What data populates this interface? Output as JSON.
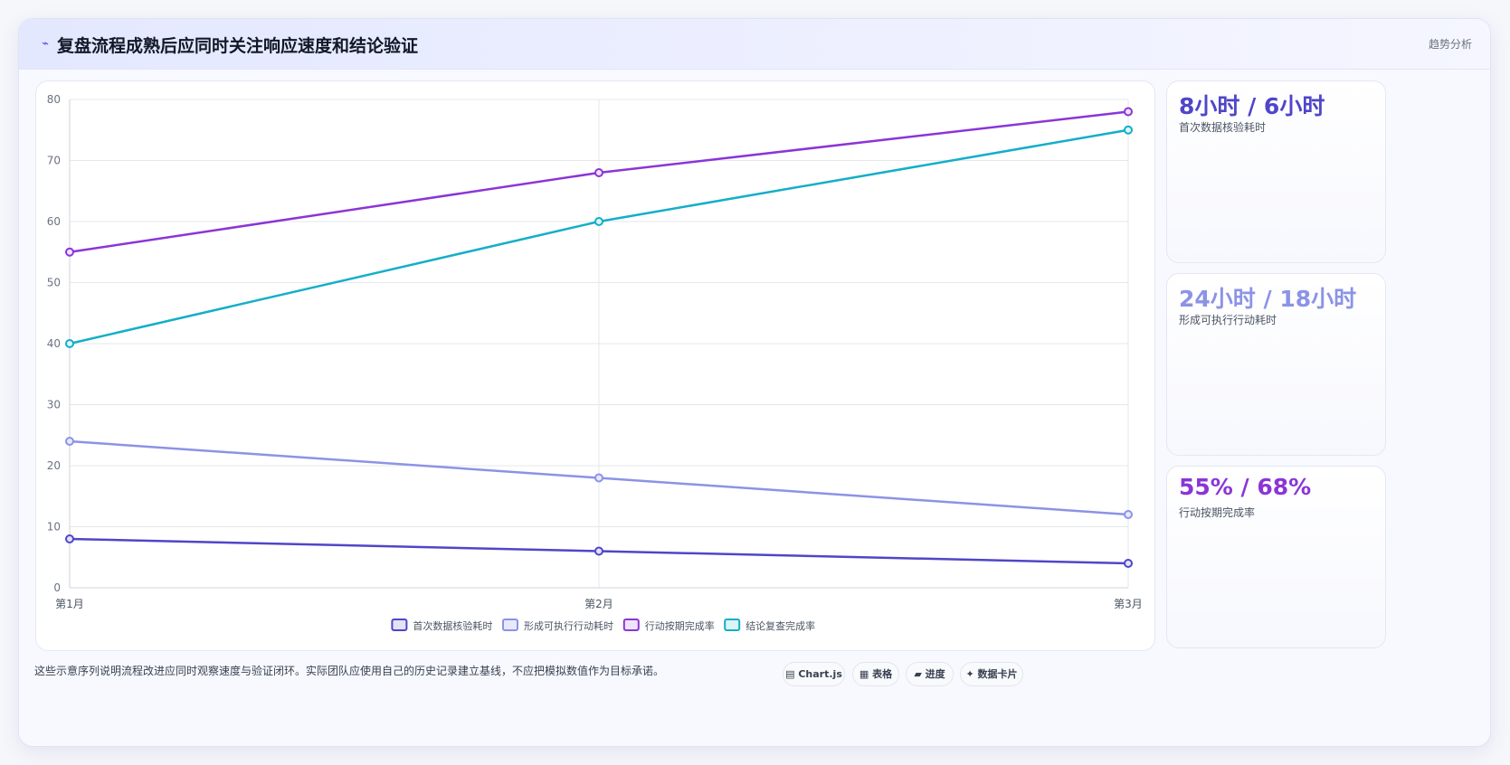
{
  "header": {
    "icon": "trend-line-icon",
    "title": "复盘流程成熟后应同时关注响应速度和结论验证",
    "tag": "趋势分析"
  },
  "chart_data": {
    "type": "line",
    "title": "",
    "xlabel": "",
    "ylabel": "",
    "categories": [
      "第1月",
      "第2月",
      "第3月"
    ],
    "ylim": [
      0,
      80
    ],
    "yticks": [
      0,
      10,
      20,
      30,
      40,
      50,
      60,
      70,
      80
    ],
    "grid": true,
    "legend_position": "bottom",
    "series": [
      {
        "name": "首次数据核验耗时",
        "values": [
          8,
          6,
          4
        ],
        "color": "#4f46c8",
        "fill": "#e3e2f7"
      },
      {
        "name": "形成可执行行动耗时",
        "values": [
          24,
          18,
          12
        ],
        "color": "#8b93e6",
        "fill": "#e7e9fb"
      },
      {
        "name": "行动按期完成率",
        "values": [
          55,
          68,
          78
        ],
        "color": "#8b35d6",
        "fill": "#efe3fb"
      },
      {
        "name": "结论复查完成率",
        "values": [
          40,
          60,
          75
        ],
        "color": "#14aec8",
        "fill": "#dcf4f8"
      }
    ]
  },
  "stats": [
    {
      "value": "8小时 / 6小时",
      "label": "首次数据核验耗时",
      "color": "#4f46c8"
    },
    {
      "value": "24小时 / 18小时",
      "label": "形成可执行行动耗时",
      "color": "#8b93e6"
    },
    {
      "value": "55% / 68%",
      "label": "行动按期完成率",
      "color": "#8b35d6"
    }
  ],
  "footnote": "这些示意序列说明流程改进应同时观察速度与验证闭环。实际团队应使用自己的历史记录建立基线，不应把模拟数值作为目标承诺。",
  "tags": [
    {
      "icon": "chart-icon",
      "glyph": "▤",
      "label": "Chart.js"
    },
    {
      "icon": "table-icon",
      "glyph": "▦",
      "label": "表格"
    },
    {
      "icon": "progress-icon",
      "glyph": "▰",
      "label": "进度"
    },
    {
      "icon": "sparkle-icon",
      "glyph": "✦",
      "label": "数据卡片"
    }
  ]
}
